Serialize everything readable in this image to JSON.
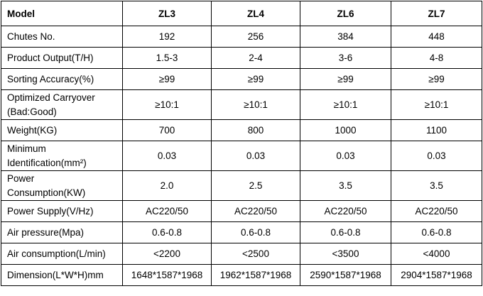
{
  "table": {
    "header": [
      "Model",
      "ZL3",
      "ZL4",
      "ZL6",
      "ZL7"
    ],
    "rows": [
      [
        [
          "Chutes No."
        ],
        "192",
        "256",
        "384",
        "448"
      ],
      [
        [
          "Product Output(T/H)"
        ],
        "1.5-3",
        "2-4",
        "3-6",
        "4-8"
      ],
      [
        [
          "Sorting Accuracy(%)"
        ],
        "≥99",
        "≥99",
        "≥99",
        "≥99"
      ],
      [
        [
          "Optimized Carryover",
          "(Bad:Good)"
        ],
        "≥10:1",
        "≥10:1",
        "≥10:1",
        "≥10:1"
      ],
      [
        [
          "Weight(KG)"
        ],
        "700",
        "800",
        "1000",
        "1100"
      ],
      [
        [
          "Minimum",
          "Identification(mm²)"
        ],
        "0.03",
        "0.03",
        "0.03",
        "0.03"
      ],
      [
        [
          "Power",
          "Consumption(KW)"
        ],
        "2.0",
        "2.5",
        "3.5",
        "3.5"
      ],
      [
        [
          "Power Supply(V/Hz)"
        ],
        "AC220/50",
        "AC220/50",
        "AC220/50",
        "AC220/50"
      ],
      [
        [
          "Air pressure(Mpa)"
        ],
        "0.6-0.8",
        "0.6-0.8",
        "0.6-0.8",
        "0.6-0.8"
      ],
      [
        [
          "Air consumption(L/min)"
        ],
        "<2200",
        "<2500",
        "<3500",
        "<4000"
      ],
      [
        [
          "Dimension(L*W*H)mm"
        ],
        "1648*1587*1968",
        "1962*1587*1968",
        "2590*1587*1968",
        "2904*1587*1968"
      ]
    ]
  }
}
